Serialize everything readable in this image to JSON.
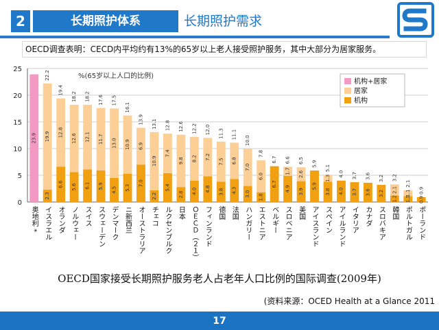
{
  "header": {
    "section_number": "2",
    "section_title": "长期照护体系",
    "subtitle": "长期照护需求",
    "logo_icon": "s-logo-icon",
    "accent_color": "#1f78c8"
  },
  "caption": "OECD调查表明：CECD内平均约有13%的65岁以上老人接受照护服务，其中大部分为居家服务。",
  "footer_title": "OECD国家接受长期照护服务老人占老年人口比例的国际调查(2009年)",
  "source": "(资料来源：OCED Health at a Glance 2011",
  "page_number": "17",
  "chart_data": {
    "type": "bar",
    "stacked": true,
    "unit_label": "%(65岁以上人口的比例)",
    "ylim": [
      0,
      25
    ],
    "yticks": [
      0,
      5,
      10,
      15,
      20,
      25
    ],
    "grid": true,
    "legend_position": "top-right",
    "categories": [
      "奥地利 *",
      "イスラエル",
      "オランダ",
      "ノルウェー",
      "スイス",
      "スウェーデン",
      "デンマーク",
      "ニ新西兰",
      "オーストラリア",
      "チェコ",
      "ルクセンブルク",
      "日本",
      "ＯＥＣＤ（２１）",
      "フィンランド",
      "德国",
      "法国",
      "ハンガリー",
      "エストニア",
      "ベルギー",
      "スロベニア",
      "美国",
      "アイスランド",
      "スペイン",
      "アイルランド",
      "イタリア",
      "カナダ",
      "スロバキア",
      "韓国",
      "ポルトガル",
      "ポーランド"
    ],
    "series": [
      {
        "name": "机构",
        "color": "#f0a010",
        "values": [
          null,
          2.3,
          6.6,
          5.6,
          6.1,
          5.9,
          4.5,
          5.3,
          7.0,
          2.2,
          5.4,
          2.8,
          4.0,
          4.8,
          3.8,
          4.3,
          3.0,
          1.8,
          6.7,
          4.9,
          3.9,
          5.9,
          3.8,
          4.0,
          3.7,
          3.6,
          3.2,
          1.2,
          1.1,
          0.9
        ]
      },
      {
        "name": "居家",
        "color": "#fbcf96",
        "values": [
          null,
          19.9,
          12.8,
          12.6,
          12.1,
          11.7,
          13.0,
          10.9,
          6.9,
          10.9,
          7.4,
          9.8,
          8.2,
          7.2,
          7.5,
          6.8,
          7.0,
          6.0,
          null,
          1.7,
          2.6,
          null,
          1.3,
          null,
          null,
          null,
          null,
          2.1,
          1.1,
          null
        ]
      },
      {
        "name": "机构+居家",
        "color": "#f29ac4",
        "values": [
          23.9,
          null,
          null,
          null,
          null,
          null,
          null,
          null,
          null,
          null,
          null,
          null,
          null,
          null,
          null,
          null,
          null,
          null,
          null,
          null,
          null,
          null,
          null,
          null,
          null,
          null,
          null,
          null,
          null,
          null
        ]
      }
    ],
    "totals": [
      23.9,
      22.2,
      19.4,
      18.2,
      18.2,
      17.6,
      17.5,
      16.1,
      13.9,
      13.1,
      12.8,
      12.6,
      12.2,
      12.0,
      11.3,
      11.1,
      10.0,
      7.8,
      6.7,
      6.6,
      6.5,
      5.9,
      5.1,
      4.0,
      3.7,
      3.6,
      3.2,
      3.2,
      2.1,
      0.9
    ]
  }
}
